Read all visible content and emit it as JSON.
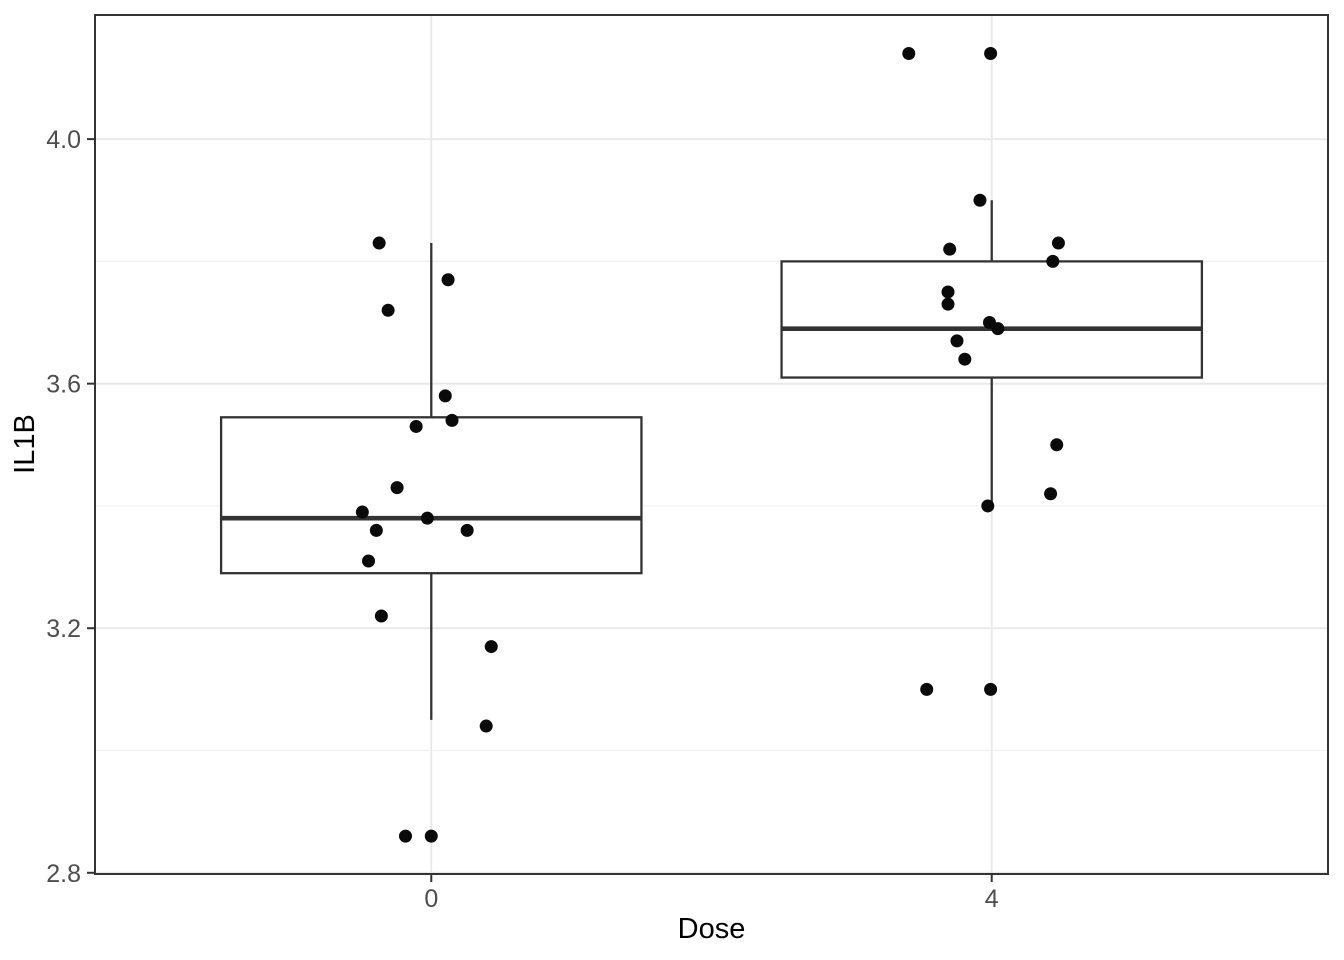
{
  "figure": {
    "background": "#ffffff"
  },
  "chart_data": {
    "type": "boxplot",
    "subtype": "boxplot with jittered points (ggplot2 style)",
    "title": "",
    "xlabel": "Dose",
    "ylabel": "IL1B",
    "categories": [
      "0",
      "4"
    ],
    "ylim": [
      2.798,
      4.203
    ],
    "yticks": [
      2.8,
      3.2,
      3.6,
      4.0
    ],
    "ytick_labels": [
      "2.8",
      "3.2",
      "3.6",
      "4.0"
    ],
    "yticks_minor": [
      3.0,
      3.4,
      3.8
    ],
    "grid": true,
    "legend_position": "none",
    "series": [
      {
        "name": "Dose 0",
        "category": "0",
        "n_points": 17,
        "box": {
          "whisker_low": 3.05,
          "q1": 3.29,
          "median": 3.38,
          "q3": 3.545,
          "whisker_high": 3.83
        },
        "points": [
          [
            -0.093,
            3.83
          ],
          [
            0.03,
            3.77
          ],
          [
            -0.077,
            3.72
          ],
          [
            0.025,
            3.58
          ],
          [
            0.037,
            3.54
          ],
          [
            -0.027,
            3.53
          ],
          [
            -0.061,
            3.43
          ],
          [
            -0.123,
            3.39
          ],
          [
            -0.007,
            3.38
          ],
          [
            -0.098,
            3.36
          ],
          [
            0.064,
            3.36
          ],
          [
            -0.112,
            3.31
          ],
          [
            -0.089,
            3.22
          ],
          [
            0.107,
            3.17
          ],
          [
            0.098,
            3.04
          ],
          [
            -0.046,
            2.86
          ],
          [
            0.0,
            2.86
          ]
        ]
      },
      {
        "name": "Dose 4",
        "category": "4",
        "n_points": 17,
        "box": {
          "whisker_low": 3.4,
          "q1": 3.61,
          "median": 3.69,
          "q3": 3.8,
          "whisker_high": 3.9
        },
        "points": [
          [
            -0.148,
            4.14
          ],
          [
            -0.002,
            4.14
          ],
          [
            -0.021,
            3.9
          ],
          [
            0.119,
            3.83
          ],
          [
            -0.075,
            3.82
          ],
          [
            0.109,
            3.8
          ],
          [
            -0.078,
            3.75
          ],
          [
            -0.078,
            3.73
          ],
          [
            -0.004,
            3.7
          ],
          [
            0.011,
            3.69
          ],
          [
            -0.062,
            3.67
          ],
          [
            -0.048,
            3.64
          ],
          [
            0.116,
            3.5
          ],
          [
            0.105,
            3.42
          ],
          [
            -0.007,
            3.4
          ],
          [
            -0.116,
            3.1
          ],
          [
            -0.002,
            3.1
          ]
        ]
      }
    ],
    "colors": {
      "background": "#ffffff",
      "panel_background": "#ffffff",
      "panel_border": "#333333",
      "grid_major": "#e8e8e8",
      "grid_minor": "#f0f0f0",
      "box_stroke": "#333333",
      "box_fill": "#ffffff",
      "point": "#0a0a0a",
      "tick_mark": "#333333",
      "tick_label": "#4d4d4d",
      "axis_title": "#000000"
    }
  }
}
